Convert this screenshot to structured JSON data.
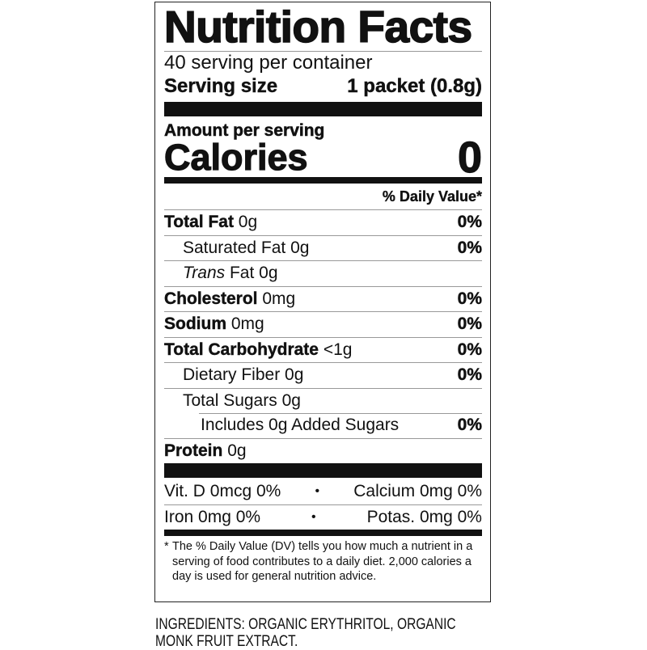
{
  "title": "Nutrition Facts",
  "servings_per_container": "40 serving per container",
  "serving_size": {
    "label": "Serving size",
    "value": "1 packet (0.8g)"
  },
  "amount_per_serving": "Amount per serving",
  "calories": {
    "label": "Calories",
    "value": "0"
  },
  "daily_value_header": "% Daily Value*",
  "nutrients": [
    {
      "name": "Total Fat",
      "amount": "0g",
      "dv": "0%"
    },
    {
      "name": "Saturated Fat",
      "amount": "0g",
      "dv": "0%"
    },
    {
      "name": "Trans",
      "name_rest": "Fat",
      "amount": "0g",
      "dv": ""
    },
    {
      "name": "Cholesterol",
      "amount": "0mg",
      "dv": "0%"
    },
    {
      "name": "Sodium",
      "amount": "0mg",
      "dv": "0%"
    },
    {
      "name": "Total Carbohydrate",
      "amount": "<1g",
      "dv": "0%"
    },
    {
      "name": "Dietary Fiber",
      "amount": "0g",
      "dv": "0%"
    },
    {
      "name": "Total Sugars",
      "amount": "0g",
      "dv": ""
    },
    {
      "name": "Includes 0g Added Sugars",
      "amount": "",
      "dv": "0%"
    },
    {
      "name": "Protein",
      "amount": "0g",
      "dv": ""
    }
  ],
  "vitamins": [
    {
      "left": "Vit. D 0mcg 0%",
      "right": "Calcium 0mg 0%"
    },
    {
      "left": "Iron 0mg 0%",
      "right": "Potas. 0mg 0%"
    }
  ],
  "separator": "•",
  "footnote": {
    "star": "*",
    "text": "The % Daily Value (DV) tells you how much a nutrient in a serving of food contributes to a daily diet. 2,000 calories a day is used for general nutrition advice."
  },
  "ingredients": "INGREDIENTS: ORGANIC ERYTHRITOL, ORGANIC MONK FRUIT EXTRACT."
}
